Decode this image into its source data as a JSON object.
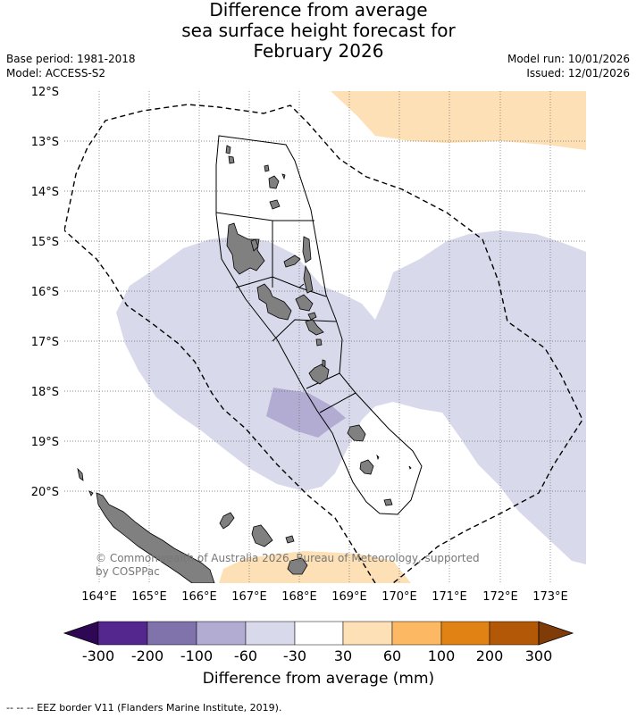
{
  "title_lines": [
    "Difference from average",
    "sea surface height forecast for",
    "February 2026"
  ],
  "meta_left": {
    "base_period": "Base period: 1981-2018",
    "model": "Model: ACCESS-S2"
  },
  "meta_right": {
    "model_run": "Model run: 10/01/2026",
    "issued": "Issued: 12/01/2026"
  },
  "lat_labels": [
    "12°S",
    "13°S",
    "14°S",
    "15°S",
    "16°S",
    "17°S",
    "18°S",
    "19°S",
    "20°S"
  ],
  "lon_labels": [
    "164°E",
    "165°E",
    "166°E",
    "167°E",
    "168°E",
    "169°E",
    "170°E",
    "171°E",
    "172°E",
    "173°E"
  ],
  "attribution": "© Commonwealth of Australia 2026, Bureau of Meteorology, supported by COSPPac",
  "colorbar": {
    "labels": [
      "-300",
      "-200",
      "-100",
      "-60",
      "-30",
      "30",
      "60",
      "100",
      "200",
      "300"
    ],
    "colors": [
      "#2e0854",
      "#54278f",
      "#8073ac",
      "#b2abd2",
      "#d8daeb",
      "#ffffff",
      "#fee0b6",
      "#fdb863",
      "#e08214",
      "#b35806",
      "#7f3b08"
    ],
    "title": "Difference from average (mm)"
  },
  "legend": "--  --  -- EEZ border V11 (Flanders Marine Institute, 2019).",
  "colors": {
    "land": "#808080",
    "pale_purple": "#d8daeb",
    "mid_purple": "#b2abd2",
    "pale_orange": "#fee0b6"
  }
}
